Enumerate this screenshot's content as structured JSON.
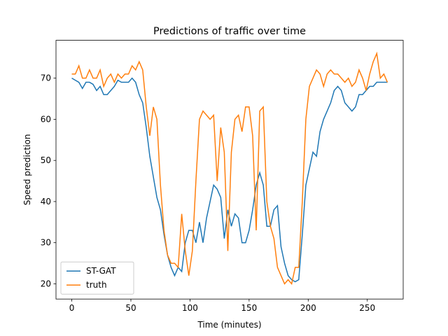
{
  "chart_data": {
    "type": "line",
    "title": "Predictions of traffic over time",
    "xlabel": "Time (minutes)",
    "ylabel": "Speed prediction",
    "x": [
      0,
      3,
      6,
      9,
      12,
      15,
      18,
      21,
      24,
      27,
      30,
      33,
      36,
      39,
      42,
      45,
      48,
      51,
      54,
      57,
      60,
      63,
      66,
      69,
      72,
      75,
      78,
      81,
      84,
      87,
      90,
      93,
      96,
      99,
      102,
      105,
      108,
      111,
      114,
      117,
      120,
      123,
      126,
      129,
      132,
      135,
      138,
      141,
      144,
      147,
      150,
      153,
      156,
      159,
      162,
      165,
      168,
      171,
      174,
      177,
      180,
      183,
      186,
      189,
      192,
      195,
      198,
      201,
      204,
      207,
      210,
      213,
      216,
      219,
      222,
      225,
      228,
      231,
      234,
      237,
      240,
      243,
      246,
      249,
      252,
      255,
      258,
      261,
      264,
      267
    ],
    "series": [
      {
        "name": "ST-GAT",
        "color": "#1f77b4",
        "values": [
          70,
          69.5,
          69,
          67.5,
          69,
          69,
          68.5,
          67,
          68,
          66,
          66,
          67,
          68,
          69.5,
          69,
          69,
          69,
          70,
          69,
          66,
          64,
          58,
          51,
          46,
          41,
          38,
          32,
          27,
          24,
          22,
          24,
          23,
          30,
          33,
          33,
          30,
          35,
          30,
          36,
          40,
          44,
          43,
          41,
          31,
          38,
          34,
          37,
          36,
          30,
          30,
          33,
          38,
          44,
          47,
          44,
          34,
          34,
          38,
          39,
          29,
          25,
          22,
          21,
          20.5,
          21,
          32,
          44,
          48,
          52,
          51,
          57,
          60,
          62,
          64,
          67,
          68,
          67,
          64,
          63,
          62,
          63,
          66,
          66,
          67,
          68,
          68,
          69,
          69,
          69,
          69
        ]
      },
      {
        "name": "truth",
        "color": "#ff7f0e",
        "values": [
          71,
          71,
          73,
          70,
          70,
          72,
          70,
          70,
          72,
          68,
          70,
          71,
          69,
          71,
          70,
          71,
          71,
          73,
          72,
          74,
          72,
          63,
          56,
          63,
          60,
          44,
          33,
          27,
          25,
          25,
          24,
          37,
          28,
          22,
          28,
          45,
          60,
          62,
          61,
          60,
          61,
          45,
          58,
          52,
          28,
          52,
          60,
          61,
          57,
          63,
          63,
          56,
          33,
          62,
          63,
          40,
          34,
          31,
          24,
          22,
          20,
          21,
          20,
          24,
          24,
          40,
          60,
          68,
          70,
          72,
          71,
          68,
          71,
          72,
          71,
          71,
          70,
          69,
          70,
          68,
          69,
          72,
          70,
          67,
          71,
          74,
          76,
          70,
          71,
          69
        ]
      }
    ],
    "xlim": [
      -13.35,
      280.35
    ],
    "ylim": [
      16.3,
      79.2
    ],
    "xticks": [
      0,
      50,
      100,
      150,
      200,
      250
    ],
    "yticks": [
      20,
      30,
      40,
      50,
      60,
      70
    ],
    "legend": "lower left"
  }
}
